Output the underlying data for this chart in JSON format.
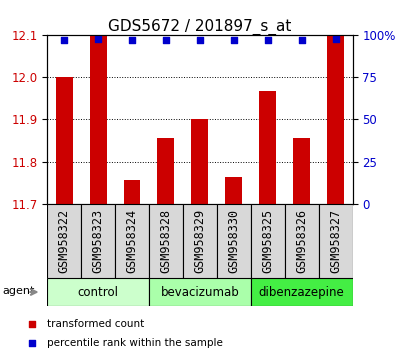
{
  "title": "GDS5672 / 201897_s_at",
  "categories": [
    "GSM958322",
    "GSM958323",
    "GSM958324",
    "GSM958328",
    "GSM958329",
    "GSM958330",
    "GSM958325",
    "GSM958326",
    "GSM958327"
  ],
  "bar_values": [
    12.002,
    12.1,
    11.755,
    11.855,
    11.9,
    11.762,
    11.968,
    11.855,
    12.1
  ],
  "percentile_values": [
    97,
    98,
    97,
    97,
    97,
    97,
    97,
    97,
    98
  ],
  "bar_color": "#cc0000",
  "percentile_color": "#0000cc",
  "ylim_left": [
    11.7,
    12.1
  ],
  "ylim_right": [
    0,
    100
  ],
  "yticks_left": [
    11.7,
    11.8,
    11.9,
    12.0,
    12.1
  ],
  "yticks_right": [
    0,
    25,
    50,
    75,
    100
  ],
  "ytick_labels_right": [
    "0",
    "25",
    "50",
    "75",
    "100%"
  ],
  "groups": [
    {
      "label": "control",
      "start": 0,
      "end": 3,
      "color": "#ccffcc"
    },
    {
      "label": "bevacizumab",
      "start": 3,
      "end": 6,
      "color": "#aaffaa"
    },
    {
      "label": "dibenzazepine",
      "start": 6,
      "end": 9,
      "color": "#44ee44"
    }
  ],
  "agent_label": "agent",
  "legend_items": [
    {
      "label": "transformed count",
      "color": "#cc0000"
    },
    {
      "label": "percentile rank within the sample",
      "color": "#0000cc"
    }
  ],
  "bar_width": 0.5,
  "title_fontsize": 11,
  "tick_fontsize": 8.5,
  "label_fontsize": 8,
  "group_fontsize": 8.5
}
